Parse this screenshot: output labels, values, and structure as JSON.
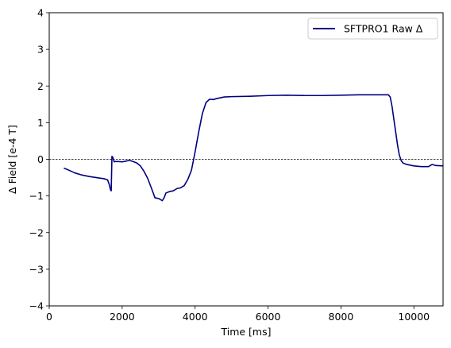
{
  "chart_data": {
    "type": "line",
    "title": "",
    "xlabel": "Time [ms]",
    "ylabel": "Δ Field [e-4 T]",
    "xlim": [
      0,
      10800
    ],
    "ylim": [
      -4,
      4
    ],
    "xticks": [
      0,
      2000,
      4000,
      6000,
      8000,
      10000
    ],
    "xtick_labels": [
      "0",
      "2000",
      "4000",
      "6000",
      "8000",
      "10000"
    ],
    "yticks": [
      -4,
      -3,
      -2,
      -1,
      0,
      1,
      2,
      3,
      4
    ],
    "ytick_labels": [
      "−4",
      "−3",
      "−2",
      "−1",
      "0",
      "1",
      "2",
      "3",
      "4"
    ],
    "grid": false,
    "legend_position": "top-right",
    "reference_line": {
      "y": 0,
      "style": "dashed",
      "color": "#000000"
    },
    "series": [
      {
        "name": "SFTPRO1 Raw Δ",
        "color": "#000080",
        "x": [
          400,
          500,
          700,
          900,
          1100,
          1300,
          1500,
          1600,
          1650,
          1680,
          1700,
          1720,
          1740,
          1760,
          1780,
          1800,
          1900,
          2000,
          2100,
          2200,
          2300,
          2400,
          2500,
          2600,
          2700,
          2800,
          2900,
          3000,
          3100,
          3150,
          3200,
          3300,
          3400,
          3500,
          3600,
          3700,
          3800,
          3900,
          4000,
          4100,
          4200,
          4300,
          4400,
          4500,
          4600,
          4800,
          5000,
          5500,
          6000,
          6500,
          7000,
          7500,
          8000,
          8500,
          9000,
          9300,
          9350,
          9400,
          9450,
          9500,
          9550,
          9600,
          9650,
          9700,
          9800,
          10000,
          10200,
          10400,
          10500,
          10600,
          10800
        ],
        "y": [
          -0.24,
          -0.28,
          -0.37,
          -0.43,
          -0.47,
          -0.5,
          -0.53,
          -0.56,
          -0.7,
          -0.83,
          -0.86,
          0.08,
          0.06,
          0.0,
          -0.07,
          -0.06,
          -0.06,
          -0.07,
          -0.05,
          -0.03,
          -0.06,
          -0.1,
          -0.18,
          -0.33,
          -0.52,
          -0.78,
          -1.05,
          -1.07,
          -1.13,
          -1.05,
          -0.92,
          -0.88,
          -0.86,
          -0.8,
          -0.78,
          -0.72,
          -0.55,
          -0.3,
          0.2,
          0.75,
          1.25,
          1.55,
          1.64,
          1.63,
          1.66,
          1.7,
          1.71,
          1.72,
          1.74,
          1.75,
          1.74,
          1.74,
          1.75,
          1.76,
          1.76,
          1.76,
          1.7,
          1.45,
          1.1,
          0.75,
          0.4,
          0.12,
          -0.03,
          -0.1,
          -0.14,
          -0.18,
          -0.2,
          -0.2,
          -0.14,
          -0.17,
          -0.18
        ]
      }
    ]
  }
}
